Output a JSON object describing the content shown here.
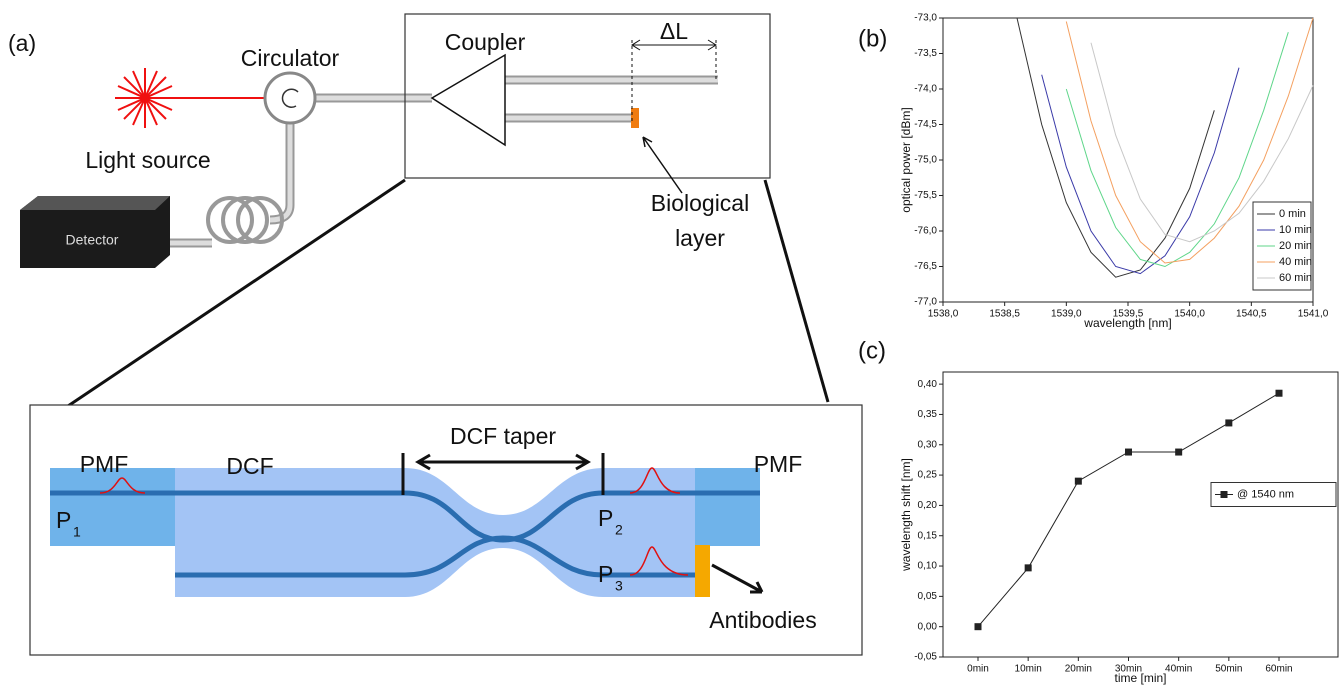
{
  "diagram": {
    "label": "(a)",
    "circulator": "Circulator",
    "light_source": "Light source",
    "detector": "Detector",
    "coupler": "Coupler",
    "delta_l": "ΔL",
    "biological_layer": [
      "Biological",
      "layer"
    ],
    "pmf_left": "PMF",
    "dcf": "DCF",
    "dcf_taper": "DCF taper",
    "pmf_right": "PMF",
    "ports": [
      {
        "label": "P",
        "sub": "1"
      },
      {
        "label": "P",
        "sub": "2"
      },
      {
        "label": "P",
        "sub": "3"
      }
    ],
    "antibodies": "Antibodies"
  },
  "chart_data": [
    {
      "type": "line",
      "panel_label": "(b)",
      "xlabel": "wavelength [nm]",
      "ylabel": "optical power [dBm]",
      "x": [
        1538.6,
        1538.8,
        1539.0,
        1539.2,
        1539.4,
        1539.6,
        1539.8,
        1540.0,
        1540.2,
        1540.4,
        1540.6,
        1540.8,
        1541.0
      ],
      "series": [
        {
          "name": "0 min",
          "color": "#333333",
          "values": [
            -73.0,
            -74.5,
            -75.6,
            -76.3,
            -76.65,
            -76.55,
            -76.1,
            -75.4,
            -74.3,
            null,
            null,
            null,
            null
          ]
        },
        {
          "name": "10 min",
          "color": "#3a3aa8",
          "values": [
            null,
            -73.8,
            -75.1,
            -76.0,
            -76.5,
            -76.6,
            -76.35,
            -75.8,
            -74.9,
            -73.7,
            null,
            null,
            null
          ]
        },
        {
          "name": "20 min",
          "color": "#5fd68a",
          "values": [
            null,
            null,
            -74.0,
            -75.15,
            -75.95,
            -76.4,
            -76.5,
            -76.3,
            -75.9,
            -75.25,
            -74.3,
            -73.2,
            null
          ]
        },
        {
          "name": "40 min",
          "color": "#f4a060",
          "values": [
            null,
            null,
            -73.05,
            -74.45,
            -75.5,
            -76.15,
            -76.45,
            -76.4,
            -76.1,
            -75.65,
            -75.0,
            -74.1,
            -73.0
          ]
        },
        {
          "name": "60 min",
          "color": "#c8c8c8",
          "values": [
            null,
            null,
            null,
            -73.35,
            -74.65,
            -75.55,
            -76.05,
            -76.15,
            -76.0,
            -75.75,
            -75.3,
            -74.7,
            -73.95
          ]
        }
      ],
      "xlim": [
        1538,
        1541
      ],
      "xticks": [
        {
          "value": 1538,
          "label": "1538,0"
        },
        {
          "value": 1538.5,
          "label": "1538,5"
        },
        {
          "value": 1539,
          "label": "1539,0"
        },
        {
          "value": 1539.5,
          "label": "1539,5"
        },
        {
          "value": 1540,
          "label": "1540,0"
        },
        {
          "value": 1540.5,
          "label": "1540,5"
        },
        {
          "value": 1541,
          "label": "1541,0"
        }
      ],
      "ylim": [
        -77,
        -73
      ],
      "yticks": [
        {
          "value": -77,
          "label": "-77,0"
        },
        {
          "value": -76.5,
          "label": "-76,5"
        },
        {
          "value": -76,
          "label": "-76,0"
        },
        {
          "value": -75.5,
          "label": "-75,5"
        },
        {
          "value": -75,
          "label": "-75,0"
        },
        {
          "value": -74.5,
          "label": "-74,5"
        },
        {
          "value": -74,
          "label": "-74,0"
        },
        {
          "value": -73.5,
          "label": "-73,5"
        },
        {
          "value": -73,
          "label": "-73,0"
        }
      ],
      "legend": "lower right"
    },
    {
      "type": "line",
      "panel_label": "(c)",
      "xlabel": "time [min]",
      "ylabel": "wavelength shift [nm]",
      "categories": [
        "0min",
        "10min",
        "20min",
        "30min",
        "40min",
        "50min",
        "60min"
      ],
      "series": [
        {
          "name": "@ 1540 nm",
          "color": "#222222",
          "marker": "square",
          "values": [
            0.0,
            0.097,
            0.24,
            0.288,
            0.288,
            0.336,
            0.385
          ]
        }
      ],
      "ylim": [
        -0.05,
        0.42
      ],
      "yticks": [
        {
          "value": -0.05,
          "label": "-0,05"
        },
        {
          "value": 0,
          "label": "0,00"
        },
        {
          "value": 0.05,
          "label": "0,05"
        },
        {
          "value": 0.1,
          "label": "0,10"
        },
        {
          "value": 0.15,
          "label": "0,15"
        },
        {
          "value": 0.2,
          "label": "0,20"
        },
        {
          "value": 0.25,
          "label": "0,25"
        },
        {
          "value": 0.3,
          "label": "0,30"
        },
        {
          "value": 0.35,
          "label": "0,35"
        },
        {
          "value": 0.4,
          "label": "0,40"
        }
      ],
      "legend": "right"
    }
  ]
}
